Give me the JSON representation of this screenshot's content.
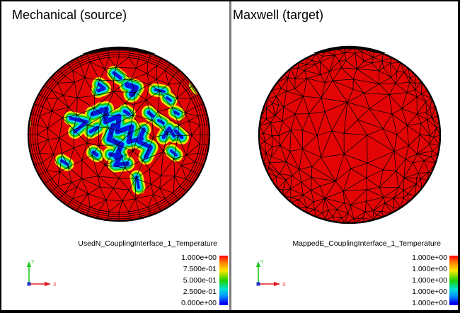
{
  "window": {
    "background": "#ffffff",
    "border_color": "#000000",
    "divider_color": "#7b7b7b"
  },
  "panels": [
    {
      "title": "Mechanical (source)",
      "legend": {
        "field_label": "UsedN_CouplingInterface_1_Temperature",
        "values": [
          "1.000e+00",
          "7.500e-01",
          "5.000e-01",
          "2.500e-01",
          "0.000e+00"
        ]
      },
      "triad": {
        "x_label": "X",
        "y_label": "Y"
      }
    },
    {
      "title": "Maxwell (target)",
      "legend": {
        "field_label": "MappedE_CouplingInterface_1_Temperature",
        "values": [
          "1.000e+00",
          "1.000e+00",
          "1.000e+00",
          "1.000e+00",
          "1.000e+00"
        ]
      },
      "triad": {
        "x_label": "X",
        "y_label": "Y"
      }
    }
  ],
  "colors": {
    "field_max_red": "#e30505",
    "contour_yellow": "#f2e800",
    "contour_green": "#17c917",
    "contour_cyan": "#00dcff",
    "contour_blue": "#0617d8",
    "mesh_line": "#000000",
    "triad_x_red": "#e02020",
    "triad_y_green": "#1ec81e",
    "triad_origin_blue": "#2233cc",
    "colorbar_gradient": [
      "#ff0000",
      "#ff8000",
      "#ffe800",
      "#1ed200",
      "#00e0d8",
      "#0090ff",
      "#0000f0"
    ]
  },
  "chart_data": [
    {
      "type": "heatmap",
      "title": "Mechanical (source)",
      "field": "UsedN_CouplingInterface_1_Temperature",
      "value_range": [
        0.0,
        1.0
      ],
      "legend_ticks": [
        1.0,
        0.75,
        0.5,
        0.25,
        0.0
      ],
      "colormap": "rainbow (red = 1.0 high, yellow/green/cyan halo, blue = 0.0 low)",
      "geometry": "circular disc, triangular FE mesh with concentric boundary-layer rings at the rim",
      "summary": "Temperature is 1.0 (red) over most of the disc; scattered near-zero (blue) spots with rainbow contour halos cluster near the centre",
      "low_value_spots": [
        {
          "w": 7,
          "pts": [
            [
              131,
              161
            ],
            [
              150,
              154
            ],
            [
              149,
              172
            ],
            [
              168,
              164
            ],
            [
              166,
              186
            ],
            [
              186,
              179
            ],
            [
              182,
              200
            ]
          ]
        },
        {
          "w": 7,
          "pts": [
            [
              160,
              177
            ],
            [
              154,
              197
            ],
            [
              172,
              204
            ],
            [
              164,
              222
            ]
          ]
        },
        {
          "w": 6,
          "pts": [
            [
              203,
              183
            ],
            [
              196,
              200
            ],
            [
              213,
              208
            ],
            [
              206,
              222
            ]
          ]
        },
        {
          "w": 6,
          "pts": [
            [
              156,
              218
            ],
            [
              171,
              221
            ],
            [
              163,
              233
            ],
            [
              180,
              231
            ]
          ]
        },
        {
          "w": 6,
          "pts": [
            [
              182,
              200
            ],
            [
              200,
              196
            ]
          ]
        },
        {
          "w": 5,
          "pts": [
            [
              138,
              180
            ],
            [
              128,
              186
            ]
          ]
        },
        {
          "w": 5,
          "pts": [
            [
              140,
              119
            ],
            [
              147,
              125
            ],
            [
              139,
              128
            ]
          ]
        },
        {
          "w": 5,
          "pts": [
            [
              161,
              103
            ],
            [
              170,
              110
            ]
          ]
        },
        {
          "w": 8,
          "pts": [
            [
              180,
              120
            ],
            [
              192,
              124
            ],
            [
              186,
              133
            ]
          ]
        },
        {
          "w": 3.5,
          "pts": [
            [
              219,
              127
            ],
            [
              232,
              129
            ]
          ]
        },
        {
          "w": 4,
          "pts": [
            [
              236,
              138
            ],
            [
              241,
              142
            ]
          ]
        },
        {
          "w": 5,
          "pts": [
            [
              143,
              154
            ],
            [
              152,
              162
            ]
          ]
        },
        {
          "w": 5,
          "pts": [
            [
              176,
              157
            ],
            [
              182,
              161
            ]
          ]
        },
        {
          "w": 5,
          "pts": [
            [
              210,
              159
            ],
            [
              216,
              164
            ]
          ]
        },
        {
          "w": 4,
          "pts": [
            [
              224,
              170
            ],
            [
              231,
              174
            ]
          ]
        },
        {
          "w": 4,
          "pts": [
            [
              247,
              158
            ],
            [
              252,
              161
            ]
          ]
        },
        {
          "w": 5,
          "pts": [
            [
              231,
              194
            ],
            [
              239,
              181
            ],
            [
              246,
              192
            ]
          ]
        },
        {
          "w": 5,
          "pts": [
            [
              248,
              185
            ],
            [
              257,
              194
            ]
          ]
        },
        {
          "w": 5,
          "pts": [
            [
              100,
              167
            ],
            [
              122,
              172
            ],
            [
              106,
              186
            ]
          ]
        },
        {
          "w": 4,
          "pts": [
            [
              31,
              171
            ],
            [
              35,
              174
            ]
          ]
        },
        {
          "w": 4,
          "pts": [
            [
              87,
              227
            ],
            [
              95,
              232
            ]
          ]
        },
        {
          "w": 5,
          "pts": [
            [
              132,
              215
            ],
            [
              137,
              219
            ]
          ]
        },
        {
          "w": 4,
          "pts": [
            [
              193,
              250
            ],
            [
              196,
              265
            ]
          ]
        },
        {
          "w": 4,
          "pts": [
            [
              242,
              213
            ],
            [
              249,
              219
            ]
          ]
        },
        {
          "w": 3,
          "pts": [
            [
              276,
              120
            ],
            [
              280,
              125
            ]
          ]
        }
      ]
    },
    {
      "type": "heatmap",
      "title": "Maxwell (target)",
      "field": "MappedE_CouplingInterface_1_Temperature",
      "value_range": [
        1.0,
        1.0
      ],
      "legend_ticks": [
        1.0,
        1.0,
        1.0,
        1.0,
        1.0
      ],
      "colormap": "rainbow",
      "geometry": "circular disc, unstructured triangular FE mesh, finer toward the rim",
      "summary": "Mapped temperature is uniformly 1.0 (red) across the whole disc"
    }
  ]
}
